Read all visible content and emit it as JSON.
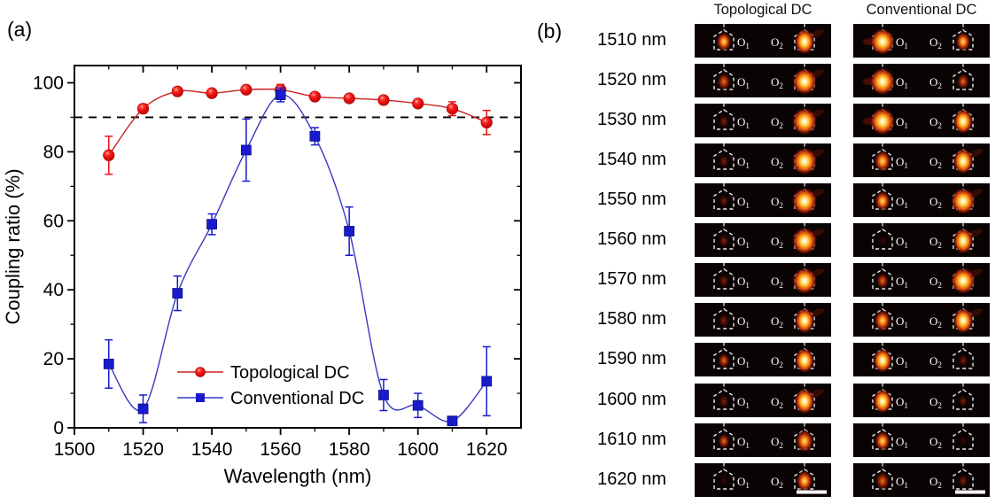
{
  "figure": {
    "panel_a_label": "(a)",
    "panel_b_label": "(b)"
  },
  "chart_data": {
    "type": "line",
    "title": "",
    "xlabel": "Wavelength (nm)",
    "ylabel": "Coupling ratio (%)",
    "xlim": [
      1500,
      1630
    ],
    "ylim": [
      0,
      105
    ],
    "x_major_ticks": [
      1500,
      1520,
      1540,
      1560,
      1580,
      1600,
      1620
    ],
    "x_minor_step": 10,
    "y_major_ticks": [
      0,
      20,
      40,
      60,
      80,
      100
    ],
    "y_minor_step": 10,
    "grid": false,
    "legend_position": "inside-bottom-center",
    "reference_line": {
      "y": 90,
      "style": "dashed",
      "color": "#000000"
    },
    "x": [
      1510,
      1520,
      1530,
      1540,
      1550,
      1560,
      1570,
      1580,
      1590,
      1600,
      1610,
      1620
    ],
    "series": [
      {
        "name": "Topological DC",
        "color": "#ee1111",
        "line_color": "#cc2222",
        "marker": "circle",
        "values": [
          79,
          92.5,
          97.5,
          97,
          98,
          98,
          96,
          95.5,
          95,
          94,
          92.5,
          88.5
        ],
        "errors": [
          5.5,
          1.2,
          1,
          1,
          1,
          1.5,
          1,
          1,
          1,
          1,
          2,
          3.5
        ]
      },
      {
        "name": "Conventional DC",
        "color": "#1a1acd",
        "line_color": "#3838c0",
        "marker": "square",
        "values": [
          18.5,
          5.5,
          39,
          59,
          80.5,
          96.5,
          84.5,
          57,
          9.5,
          6.5,
          2,
          13.5
        ],
        "errors": [
          7,
          4,
          5,
          3,
          9,
          2,
          2.5,
          7,
          4.5,
          3.5,
          0.8,
          10
        ]
      }
    ]
  },
  "panel_b": {
    "column_headers": [
      "Topological DC",
      "Conventional DC"
    ],
    "port_labels": [
      {
        "base": "O",
        "sub": "1"
      },
      {
        "base": "O",
        "sub": "2"
      }
    ],
    "rows": [
      {
        "wavelength": "1510 nm",
        "topological": {
          "o1": 0.5,
          "o2": 0.9
        },
        "conventional": {
          "o1": 0.95,
          "o2": 0.5
        }
      },
      {
        "wavelength": "1520 nm",
        "topological": {
          "o1": 0.4,
          "o2": 0.95
        },
        "conventional": {
          "o1": 1.0,
          "o2": 0.3
        }
      },
      {
        "wavelength": "1530 nm",
        "topological": {
          "o1": 0.18,
          "o2": 1.0
        },
        "conventional": {
          "o1": 1.0,
          "o2": 0.85
        }
      },
      {
        "wavelength": "1540 nm",
        "topological": {
          "o1": 0.12,
          "o2": 1.0
        },
        "conventional": {
          "o1": 0.65,
          "o2": 0.9
        }
      },
      {
        "wavelength": "1550 nm",
        "topological": {
          "o1": 0.1,
          "o2": 1.0
        },
        "conventional": {
          "o1": 0.55,
          "o2": 0.95
        }
      },
      {
        "wavelength": "1560 nm",
        "topological": {
          "o1": 0.18,
          "o2": 1.0
        },
        "conventional": {
          "o1": 0.03,
          "o2": 0.9
        }
      },
      {
        "wavelength": "1570 nm",
        "topological": {
          "o1": 0.2,
          "o2": 0.95
        },
        "conventional": {
          "o1": 0.3,
          "o2": 0.95
        }
      },
      {
        "wavelength": "1580 nm",
        "topological": {
          "o1": 0.22,
          "o2": 0.9
        },
        "conventional": {
          "o1": 0.65,
          "o2": 0.9
        }
      },
      {
        "wavelength": "1590 nm",
        "topological": {
          "o1": 0.25,
          "o2": 0.85
        },
        "conventional": {
          "o1": 0.8,
          "o2": 0.12
        }
      },
      {
        "wavelength": "1600 nm",
        "topological": {
          "o1": 0.2,
          "o2": 0.9
        },
        "conventional": {
          "o1": 0.8,
          "o2": 0.08
        }
      },
      {
        "wavelength": "1610 nm",
        "topological": {
          "o1": 0.25,
          "o2": 0.75
        },
        "conventional": {
          "o1": 0.55,
          "o2": 0.05
        }
      },
      {
        "wavelength": "1620 nm",
        "topological": {
          "o1": 0.03,
          "o2": 0.65
        },
        "conventional": {
          "o1": 0.45,
          "o2": 0.15
        }
      }
    ],
    "scale_bar_on_last_row": true
  }
}
